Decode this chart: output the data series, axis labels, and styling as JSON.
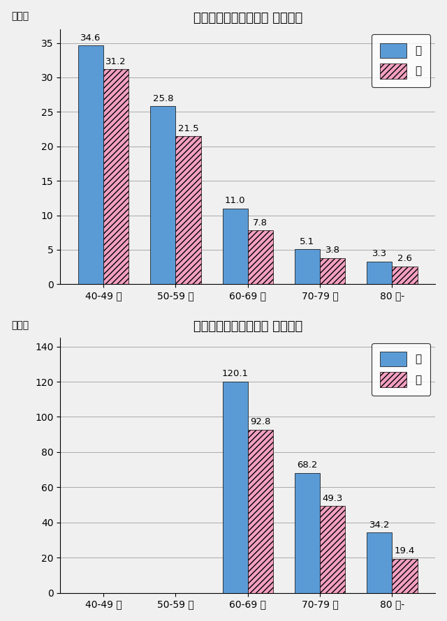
{
  "chart1": {
    "title": "目を閉じての片脚立ち （秒数）",
    "ylabel": "（秒）",
    "categories": [
      "40-49 歳",
      "50-59 歳",
      "60-69 歳",
      "70-79 歳",
      "80 歳-"
    ],
    "male": [
      34.6,
      25.8,
      11.0,
      5.1,
      3.3
    ],
    "female": [
      31.2,
      21.5,
      7.8,
      3.8,
      2.6
    ],
    "ylim": [
      0,
      37
    ],
    "yticks": [
      0,
      5,
      10,
      15,
      20,
      25,
      30,
      35
    ]
  },
  "chart2": {
    "title": "目を開けての片脚立ち （秒数）",
    "ylabel": "（秒）",
    "categories": [
      "40-49 歳",
      "50-59 歳",
      "60-69 歳",
      "70-79 歳",
      "80 歳-"
    ],
    "male": [
      null,
      null,
      120.1,
      68.2,
      34.2
    ],
    "female": [
      null,
      null,
      92.8,
      49.3,
      19.4
    ],
    "ylim": [
      0,
      145
    ],
    "yticks": [
      0,
      20,
      40,
      60,
      80,
      100,
      120,
      140
    ]
  },
  "bar_width": 0.35,
  "male_color": "#5b9bd5",
  "female_color": "#f4a0c0",
  "male_label": "男",
  "female_label": "女",
  "bg_color": "#f0f0f0",
  "plot_bg_color": "#f0f0f0",
  "grid_color": "#aaaaaa",
  "label_fontsize": 10,
  "title_fontsize": 13,
  "tick_fontsize": 10,
  "value_fontsize": 9.5
}
